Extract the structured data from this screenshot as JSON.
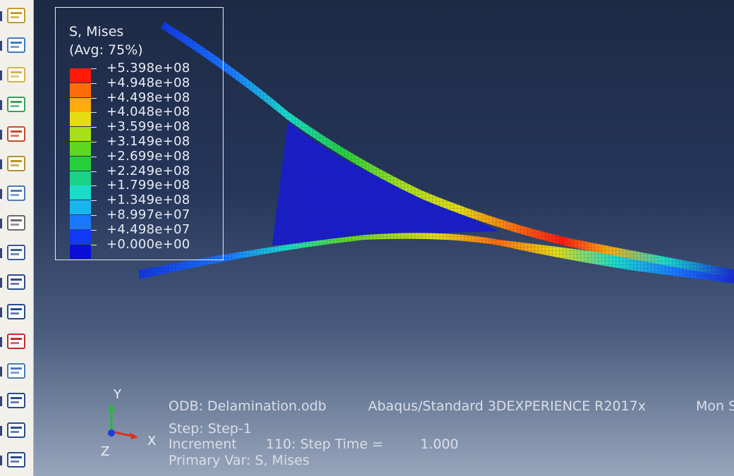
{
  "toolbar": {
    "buttons": [
      {
        "name": "contour-plot-button",
        "icon": "contour-icon"
      },
      {
        "name": "view-cut-manager-button",
        "icon": "view-cut-icon"
      },
      {
        "name": "deformed-shape-button",
        "icon": "deformed-shape-icon"
      },
      {
        "name": "contour-options-button",
        "icon": "contour-options-icon"
      },
      {
        "name": "symbol-plot-button",
        "icon": "symbol-plot-icon"
      },
      {
        "name": "material-orientation-button",
        "icon": "material-orientation-icon"
      },
      {
        "name": "plot-options-button",
        "icon": "plot-options-icon"
      },
      {
        "name": "animate-button",
        "icon": "animation-icon"
      },
      {
        "name": "field-output-button",
        "icon": "field-output-icon"
      },
      {
        "name": "report-manager-button",
        "icon": "report-icon"
      },
      {
        "name": "xy-data-manager-button",
        "icon": "report-icon"
      },
      {
        "name": "xy-plot-button",
        "icon": "xy-plot-icon"
      },
      {
        "name": "path-manager-button",
        "icon": "path-icon"
      },
      {
        "name": "stream-manager-button",
        "icon": "report-icon"
      },
      {
        "name": "display-group-button",
        "icon": "report-icon"
      },
      {
        "name": "extra-button",
        "icon": "report-icon"
      }
    ]
  },
  "legend": {
    "title": "S, Mises",
    "subtitle": "(Avg: 75%)",
    "levels": [
      {
        "label": "+5.398e+08",
        "color": "#ff1a0a"
      },
      {
        "label": "+4.948e+08",
        "color": "#ff6c0a"
      },
      {
        "label": "+4.498e+08",
        "color": "#ffab0c"
      },
      {
        "label": "+4.048e+08",
        "color": "#e6dc12"
      },
      {
        "label": "+3.599e+08",
        "color": "#a7e01a"
      },
      {
        "label": "+3.149e+08",
        "color": "#5ed81f"
      },
      {
        "label": "+2.699e+08",
        "color": "#25d03c"
      },
      {
        "label": "+2.249e+08",
        "color": "#1cd287"
      },
      {
        "label": "+1.799e+08",
        "color": "#1adcc8"
      },
      {
        "label": "+1.349e+08",
        "color": "#19b6ee"
      },
      {
        "label": "+8.997e+07",
        "color": "#1a78ff"
      },
      {
        "label": "+4.498e+07",
        "color": "#1238f5"
      },
      {
        "label": "+0.000e+00",
        "color": "#0a0ed6"
      }
    ]
  },
  "info": {
    "odb": "ODB: Delamination.odb",
    "solver": "Abaqus/Standard 3DEXPERIENCE R2017x",
    "date": "Mon S",
    "step": "Step: Step-1",
    "increment_label": "Increment",
    "increment_value": "110: Step Time =",
    "step_time": "1.000",
    "primary_var": "Primary Var: S, Mises"
  },
  "triad": {
    "y": "Y",
    "x": "X",
    "z": "Z"
  },
  "colors": {
    "model_base": "#1a1fc8",
    "bg_top": "#1c2a44",
    "bg_bottom": "#97a5bb"
  }
}
